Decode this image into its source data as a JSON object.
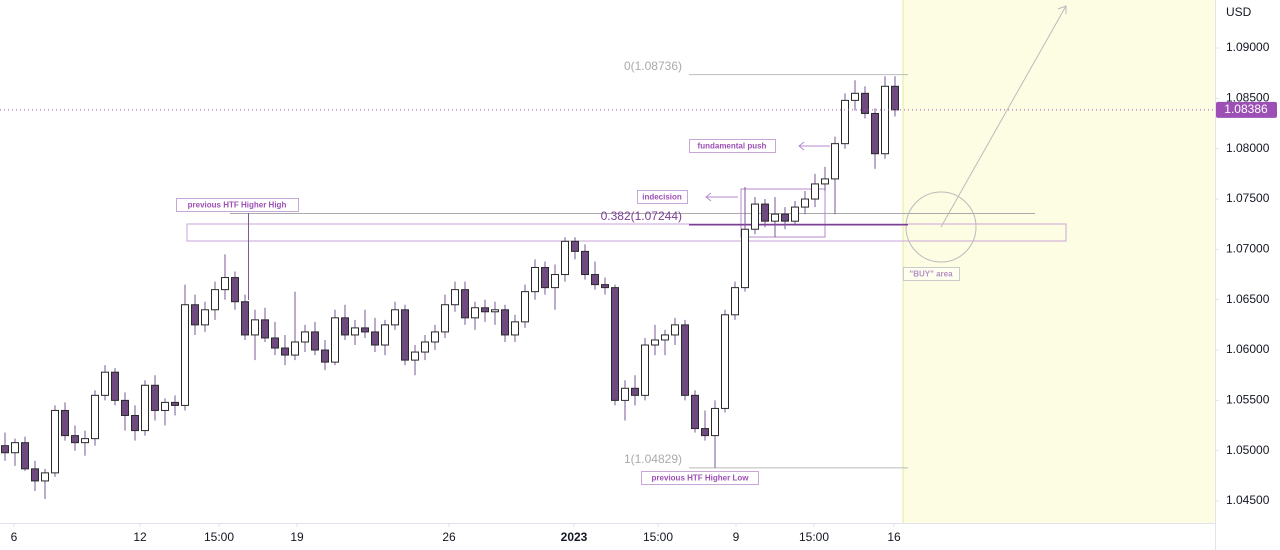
{
  "chart_data": {
    "type": "candlestick",
    "currency": "USD",
    "up_color": "#ffffff",
    "down_color": "#6e4a80",
    "border_color": "#2a2a2a",
    "wick_color": "#7a5a9a",
    "xlim": [
      -0.5,
      121
    ],
    "xticks": [
      {
        "value": 0.9,
        "label": "6"
      },
      {
        "value": 13.5,
        "label": "12"
      },
      {
        "value": 21.4,
        "label": "15:00"
      },
      {
        "value": 29.2,
        "label": "19"
      },
      {
        "value": 44.4,
        "label": "26"
      },
      {
        "value": 56.9,
        "label": "2023",
        "bold": true
      },
      {
        "value": 65.3,
        "label": "15:00"
      },
      {
        "value": 73.1,
        "label": "9"
      },
      {
        "value": 80.9,
        "label": "15:00"
      },
      {
        "value": 88.9,
        "label": "16"
      }
    ],
    "ylim": [
      1.04282,
      1.09477
    ],
    "yticks": [
      {
        "value": 1.045,
        "label": "1.04500"
      },
      {
        "value": 1.05,
        "label": "1.05000"
      },
      {
        "value": 1.055,
        "label": "1.05500"
      },
      {
        "value": 1.06,
        "label": "1.06000"
      },
      {
        "value": 1.065,
        "label": "1.06500"
      },
      {
        "value": 1.07,
        "label": "1.07000"
      },
      {
        "value": 1.075,
        "label": "1.07500"
      },
      {
        "value": 1.08,
        "label": "1.08000"
      },
      {
        "value": 1.085,
        "label": "1.08500"
      },
      {
        "value": 1.09,
        "label": "1.09000"
      }
    ],
    "last_price": 1.08386,
    "open": [
      1.0505,
      1.0498,
      1.0508,
      1.0482,
      1.047,
      1.0478,
      1.054,
      1.0515,
      1.0508,
      1.0512,
      1.0555,
      1.0578,
      1.055,
      1.0535,
      1.052,
      1.0565,
      1.054,
      1.0548,
      1.0545,
      1.0645,
      1.0625,
      1.064,
      1.066,
      1.0672,
      1.0648,
      1.0615,
      1.063,
      1.0612,
      1.0602,
      1.0595,
      1.0608,
      1.0618,
      1.06,
      1.0588,
      1.0632,
      1.0615,
      1.0622,
      1.0618,
      1.0605,
      1.0625,
      1.064,
      1.059,
      1.0598,
      1.0608,
      1.0618,
      1.0645,
      1.066,
      1.0632,
      1.0642,
      1.0638,
      1.064,
      1.0615,
      1.0628,
      1.0658,
      1.0682,
      1.0662,
      1.0675,
      1.0708,
      1.0698,
      1.0675,
      1.0665,
      1.0662,
      1.055,
      1.0562,
      1.0555,
      1.0605,
      1.061,
      1.0615,
      1.0625,
      1.0555,
      1.0522,
      1.0515,
      1.0542,
      1.0635,
      1.0662,
      1.072,
      1.0745,
      1.0728,
      1.0735,
      1.0728,
      1.0742,
      1.075,
      1.0765,
      1.077,
      1.0805,
      1.0848,
      1.0855,
      1.0835,
      1.0795,
      1.0862
    ],
    "high": [
      1.0518,
      1.0512,
      1.0514,
      1.049,
      1.0482,
      1.0545,
      1.0548,
      1.0525,
      1.052,
      1.056,
      1.0585,
      1.0582,
      1.0558,
      1.0545,
      1.057,
      1.0575,
      1.0552,
      1.0555,
      1.0665,
      1.0655,
      1.0648,
      1.0668,
      1.0695,
      1.0678,
      1.0655,
      1.064,
      1.0642,
      1.0628,
      1.0615,
      1.0658,
      1.0625,
      1.0628,
      1.061,
      1.064,
      1.0645,
      1.063,
      1.064,
      1.0632,
      1.063,
      1.0648,
      1.0645,
      1.0605,
      1.0615,
      1.0625,
      1.0655,
      1.0668,
      1.0668,
      1.0648,
      1.065,
      1.0648,
      1.0645,
      1.0635,
      1.0665,
      1.069,
      1.0688,
      1.0685,
      1.0712,
      1.0712,
      1.0705,
      1.0688,
      1.0672,
      1.0665,
      1.057,
      1.0575,
      1.0612,
      1.0625,
      1.062,
      1.0632,
      1.063,
      1.056,
      1.054,
      1.055,
      1.064,
      1.0668,
      1.0762,
      1.0752,
      1.075,
      1.0752,
      1.0742,
      1.0748,
      1.0758,
      1.0775,
      1.0782,
      1.0812,
      1.0855,
      1.0868,
      1.0862,
      1.084,
      1.0872,
      1.0872
    ],
    "low": [
      1.049,
      1.0485,
      1.048,
      1.046,
      1.0452,
      1.0474,
      1.051,
      1.05,
      1.0495,
      1.0505,
      1.055,
      1.0545,
      1.052,
      1.051,
      1.0515,
      1.053,
      1.0525,
      1.0535,
      1.054,
      1.0615,
      1.0618,
      1.063,
      1.065,
      1.064,
      1.061,
      1.059,
      1.0608,
      1.0595,
      1.0585,
      1.059,
      1.0598,
      1.0595,
      1.058,
      1.0585,
      1.061,
      1.0605,
      1.0612,
      1.0598,
      1.0595,
      1.062,
      1.0585,
      1.0575,
      1.059,
      1.06,
      1.0612,
      1.0638,
      1.0625,
      1.062,
      1.0628,
      1.0625,
      1.0608,
      1.0608,
      1.0622,
      1.065,
      1.0655,
      1.064,
      1.0668,
      1.069,
      1.067,
      1.066,
      1.0655,
      1.0545,
      1.053,
      1.0545,
      1.055,
      1.0595,
      1.0595,
      1.0605,
      1.055,
      1.0518,
      1.051,
      1.0483,
      1.0538,
      1.063,
      1.0658,
      1.0715,
      1.0722,
      1.0712,
      1.072,
      1.0725,
      1.0735,
      1.0742,
      1.0758,
      1.0735,
      1.08,
      1.0838,
      1.083,
      1.078,
      1.079,
      1.0832
    ],
    "close": [
      1.0498,
      1.0508,
      1.0482,
      1.047,
      1.0478,
      1.054,
      1.0515,
      1.0508,
      1.0512,
      1.0555,
      1.0578,
      1.055,
      1.0535,
      1.052,
      1.0565,
      1.054,
      1.0548,
      1.0545,
      1.0645,
      1.0625,
      1.064,
      1.066,
      1.0672,
      1.0648,
      1.0615,
      1.063,
      1.0612,
      1.0602,
      1.0595,
      1.0608,
      1.0618,
      1.06,
      1.0588,
      1.0632,
      1.0615,
      1.0622,
      1.0618,
      1.0605,
      1.0625,
      1.064,
      1.059,
      1.0598,
      1.0608,
      1.0618,
      1.0645,
      1.066,
      1.0632,
      1.0642,
      1.0638,
      1.064,
      1.0615,
      1.0628,
      1.0658,
      1.0682,
      1.0662,
      1.0675,
      1.0708,
      1.0698,
      1.0675,
      1.0665,
      1.0662,
      1.055,
      1.0562,
      1.0555,
      1.0605,
      1.061,
      1.0615,
      1.0625,
      1.0555,
      1.0522,
      1.0515,
      1.0542,
      1.0635,
      1.0662,
      1.072,
      1.0745,
      1.0728,
      1.0735,
      1.0728,
      1.0742,
      1.075,
      1.0765,
      1.077,
      1.0805,
      1.0848,
      1.0855,
      1.0835,
      1.0795,
      1.0862,
      1.08386
    ],
    "fib_levels": [
      {
        "value": 1.08736,
        "label": "0(1.08736)"
      },
      {
        "value": 1.07244,
        "label": "0.382(1.07244)"
      },
      {
        "value": 1.04829,
        "label": "1(1.04829)"
      }
    ],
    "annotations": {
      "fundamental_push": "fundamental push",
      "indecision": "indecision",
      "higher_high": "previous HTF Higher High",
      "higher_low": "previous HTF Higher Low",
      "buy_area": "\"BUY\" area"
    }
  }
}
